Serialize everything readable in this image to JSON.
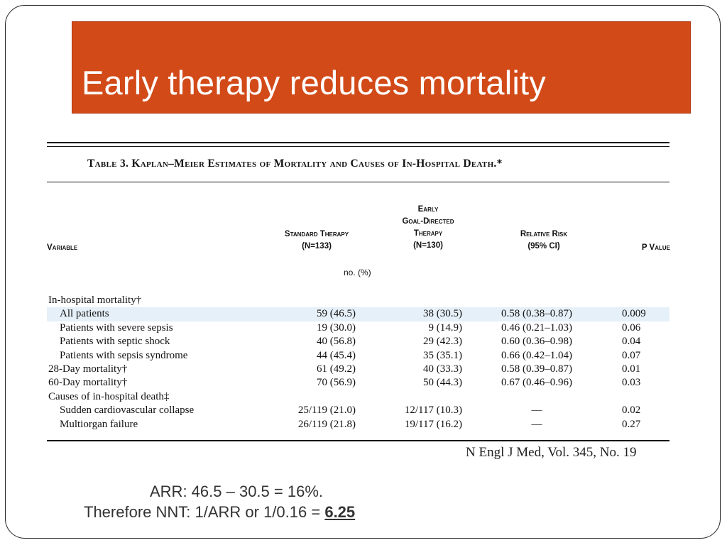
{
  "slide": {
    "title": "Early therapy reduces mortality",
    "colors": {
      "title_bg": "#d24a18",
      "title_text": "#ffffff",
      "highlight_row": "#e6f0f8"
    }
  },
  "table": {
    "caption": "Table 3. Kaplan–Meier Estimates of Mortality and Causes of In-Hospital Death.*",
    "headers": {
      "variable": "Variable",
      "standard": [
        "Standard Therapy",
        "(N=133)"
      ],
      "early": [
        "Early",
        "Goal-Directed",
        "Therapy",
        "(N=130)"
      ],
      "relative_risk": [
        "Relative Risk",
        "(95% CI)"
      ],
      "p_value": "P Value"
    },
    "units": "no. (%)",
    "rows": [
      {
        "variable": "In-hospital mortality†",
        "standard": "",
        "early": "",
        "rr": "",
        "p": ""
      },
      {
        "variable": "All patients",
        "standard": "59 (46.5)",
        "early": "38 (30.5)",
        "rr": "0.58 (0.38–0.87)",
        "p": "0.009"
      },
      {
        "variable": "Patients with severe sepsis",
        "standard": "19 (30.0)",
        "early": "9 (14.9)",
        "rr": "0.46 (0.21–1.03)",
        "p": "0.06"
      },
      {
        "variable": "Patients with septic shock",
        "standard": "40 (56.8)",
        "early": "29 (42.3)",
        "rr": "0.60 (0.36–0.98)",
        "p": "0.04"
      },
      {
        "variable": "Patients with sepsis syndrome",
        "standard": "44 (45.4)",
        "early": "35 (35.1)",
        "rr": "0.66 (0.42–1.04)",
        "p": "0.07"
      },
      {
        "variable": "28-Day mortality†",
        "standard": "61 (49.2)",
        "early": "40 (33.3)",
        "rr": "0.58 (0.39–0.87)",
        "p": "0.01"
      },
      {
        "variable": "60-Day mortality†",
        "standard": "70 (56.9)",
        "early": "50 (44.3)",
        "rr": "0.67 (0.46–0.96)",
        "p": "0.03"
      },
      {
        "variable": "Causes of in-hospital death‡",
        "standard": "",
        "early": "",
        "rr": "",
        "p": ""
      },
      {
        "variable": "Sudden cardiovascular collapse",
        "standard": "25/119 (21.0)",
        "early": "12/117 (10.3)",
        "rr": "—",
        "p": "0.02"
      },
      {
        "variable": "Multiorgan failure",
        "standard": "26/119 (21.8)",
        "early": "19/117 (16.2)",
        "rr": "—",
        "p": "0.27"
      }
    ],
    "citation": "N Engl J Med, Vol. 345, No. 19"
  },
  "notes": {
    "arr": "ARR: 46.5 – 30.5 = 16%.",
    "nnt_prefix": "Therefore NNT: 1/ARR or 1/0.16 = ",
    "nnt_value": "6.25"
  }
}
